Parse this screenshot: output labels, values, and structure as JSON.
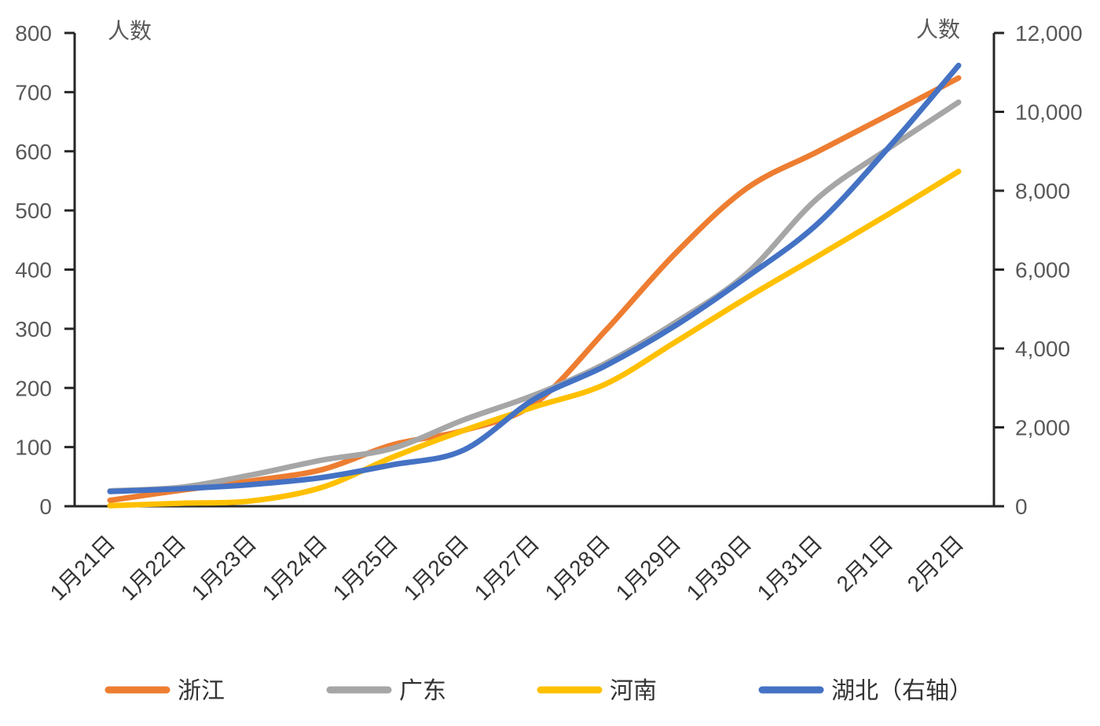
{
  "chart_data": {
    "type": "line",
    "title": "",
    "categories": [
      "1月21日",
      "1月22日",
      "1月23日",
      "1月24日",
      "1月25日",
      "1月26日",
      "1月27日",
      "1月28日",
      "1月29日",
      "1月30日",
      "1月31日",
      "2月1日",
      "2月2日"
    ],
    "series": [
      {
        "name": "浙江",
        "axis": "left",
        "color": "#ED7D31",
        "values": [
          10,
          27,
          43,
          62,
          104,
          128,
          173,
          296,
          428,
          537,
          599,
          661,
          724
        ]
      },
      {
        "name": "广东",
        "axis": "left",
        "color": "#A6A6A6",
        "values": [
          26,
          32,
          53,
          78,
          98,
          146,
          188,
          241,
          311,
          393,
          520,
          604,
          683
        ]
      },
      {
        "name": "河南",
        "axis": "left",
        "color": "#FFC000",
        "values": [
          1,
          5,
          9,
          32,
          83,
          128,
          168,
          206,
          278,
          352,
          422,
          493,
          566
        ]
      },
      {
        "name": "湖北（右轴）",
        "axis": "right",
        "color": "#4472C4",
        "values": [
          375,
          444,
          549,
          729,
          1052,
          1423,
          2714,
          3554,
          4586,
          5806,
          7153,
          9074,
          11177
        ]
      }
    ],
    "left_axis": {
      "title": "人数",
      "min": 0,
      "max": 800,
      "step": 100,
      "tick_labels": [
        "0",
        "100",
        "200",
        "300",
        "400",
        "500",
        "600",
        "700",
        "800"
      ]
    },
    "right_axis": {
      "title": "人数",
      "min": 0,
      "max": 12000,
      "step": 2000,
      "tick_labels": [
        "0",
        "2,000",
        "4,000",
        "6,000",
        "8,000",
        "10,000",
        "12,000"
      ]
    },
    "grid": false,
    "smooth_lines": true,
    "legend_position": "bottom",
    "legend": [
      {
        "label": "浙江",
        "color": "#ED7D31"
      },
      {
        "label": "广东",
        "color": "#A6A6A6"
      },
      {
        "label": "河南",
        "color": "#FFC000"
      },
      {
        "label": "湖北（右轴）",
        "color": "#4472C4"
      }
    ],
    "style": {
      "axis_line_color": "#262626",
      "tick_label_color": "#595959",
      "category_label_color": "#333333",
      "line_width": 7
    }
  }
}
